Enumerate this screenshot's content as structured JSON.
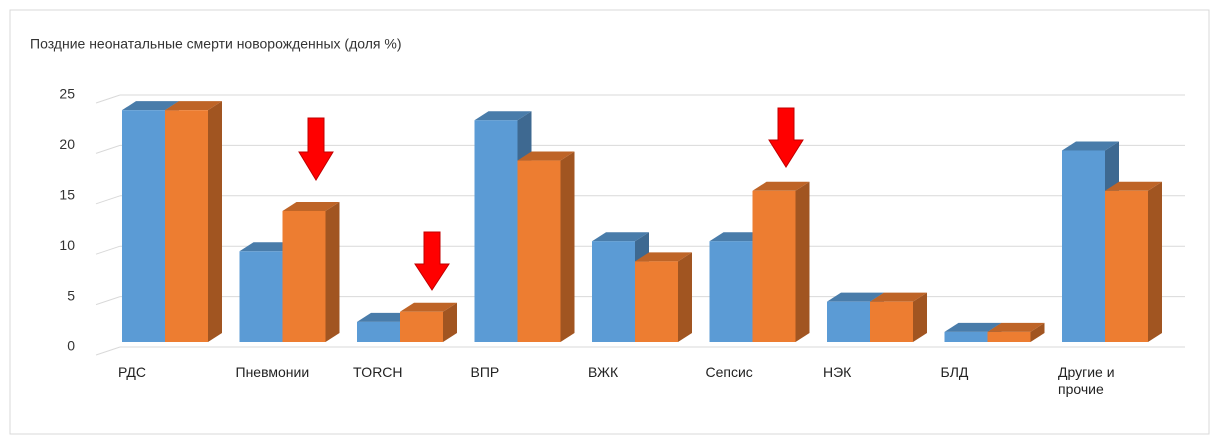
{
  "chart_data": {
    "type": "bar3d",
    "title": "Поздние неонатальные смерти новорожденных (доля %)",
    "categories": [
      "РДС",
      "Пневмонии",
      "TORCH",
      "ВПР",
      "ВЖК",
      "Сепсис",
      "НЭК",
      "БЛД",
      "Другие и прочие"
    ],
    "series": [
      {
        "color": "#5b9bd5",
        "values": [
          23,
          9,
          2,
          22,
          10,
          10,
          4,
          1,
          19
        ]
      },
      {
        "color": "#ed7d31",
        "values": [
          23,
          13,
          3,
          18,
          8,
          15,
          4,
          1,
          15
        ]
      }
    ],
    "ylim": [
      0,
      25
    ],
    "yticks": [
      0,
      5,
      10,
      15,
      20,
      25
    ],
    "grid": true
  }
}
